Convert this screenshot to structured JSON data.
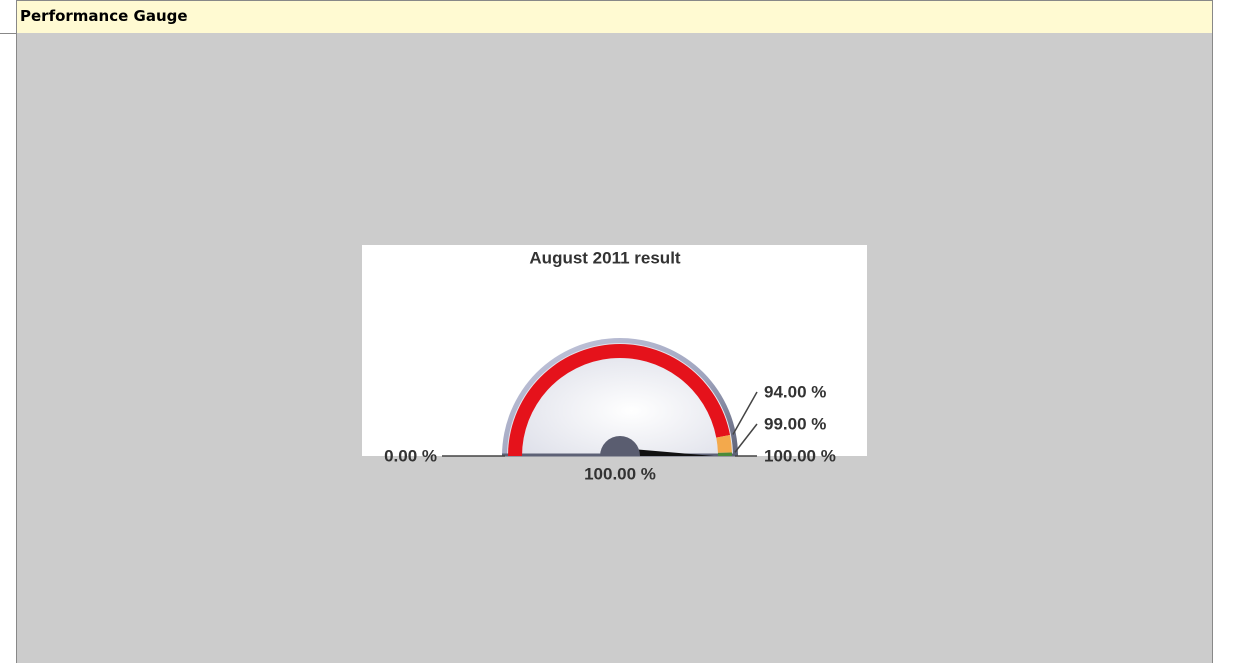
{
  "panel": {
    "title": "Performance Gauge"
  },
  "chart_data": {
    "type": "gauge",
    "title": "August 2011 result",
    "lim": [
      0,
      100
    ],
    "ticks": [
      {
        "value": 0,
        "label": "0.00 %"
      },
      {
        "value": 94,
        "label": "94.00 %"
      },
      {
        "value": 99,
        "label": "99.00 %"
      },
      {
        "value": 100,
        "label": "100.00 %"
      }
    ],
    "band_colors": [
      "#e5121b",
      "#f3a94c",
      "#4a8a3a"
    ],
    "value": 100,
    "value_label": "100.00 %"
  }
}
